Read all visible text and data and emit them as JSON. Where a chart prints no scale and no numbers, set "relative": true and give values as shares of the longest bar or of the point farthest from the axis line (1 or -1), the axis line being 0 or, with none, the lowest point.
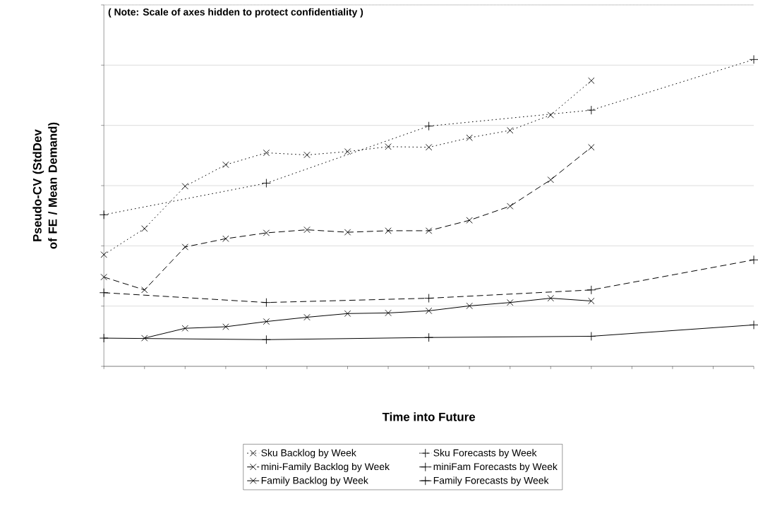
{
  "chart_data": {
    "type": "line",
    "relative": true,
    "xlabel": "Time into Future",
    "ylabel": "Pseudo-CV (StdDev of FE / Mean Demand)",
    "annotations": [
      "( Note: Scale of axes hidden to protect confidentiality )"
    ],
    "categories": [
      null,
      null,
      null,
      null,
      null,
      null,
      null,
      null,
      null,
      null,
      null,
      null,
      null,
      null,
      null,
      null,
      null
    ],
    "series": [
      {
        "name": "Sku Backlog by Week",
        "color": "#000000",
        "marker": "cross",
        "line_style": "dotted",
        "values": [
          0.364,
          0.449,
          0.587,
          0.657,
          0.696,
          0.689,
          0.7,
          0.716,
          0.714,
          0.745,
          0.769,
          0.819,
          0.931,
          null,
          null,
          null,
          null
        ]
      },
      {
        "name": "Sku Forecasts by Week",
        "color": "#000000",
        "marker": "plus",
        "line_style": "dotted",
        "values": [
          0.494,
          null,
          null,
          null,
          0.597,
          null,
          null,
          null,
          0.783,
          null,
          null,
          null,
          0.835,
          null,
          null,
          null,
          1
        ]
      },
      {
        "name": "mini-Family Backlog by Week",
        "color": "#000000",
        "marker": "cross",
        "line_style": "dashed",
        "values": [
          0.291,
          0.249,
          0.389,
          0.416,
          0.435,
          0.445,
          0.437,
          0.442,
          0.442,
          0.476,
          0.522,
          0.608,
          0.714,
          null,
          null,
          null,
          null
        ]
      },
      {
        "name": "miniFam Forecasts by Week",
        "color": "#000000",
        "marker": "plus",
        "line_style": "dashed",
        "values": [
          0.24,
          null,
          null,
          null,
          0.208,
          null,
          null,
          null,
          0.222,
          null,
          null,
          null,
          0.249,
          null,
          null,
          null,
          0.347
        ]
      },
      {
        "name": "Family Backlog by Week",
        "color": "#000000",
        "marker": "cross",
        "line_style": "solid",
        "values": [
          null,
          0.092,
          0.124,
          0.129,
          0.146,
          0.16,
          0.172,
          0.174,
          0.181,
          0.197,
          0.208,
          0.222,
          0.213,
          null,
          null,
          null,
          null
        ]
      },
      {
        "name": "Family Forecasts by Week",
        "color": "#000000",
        "marker": "plus",
        "line_style": "solid",
        "values": [
          0.092,
          null,
          null,
          null,
          0.087,
          null,
          null,
          null,
          0.094,
          null,
          null,
          null,
          0.098,
          null,
          null,
          null,
          0.135
        ]
      }
    ],
    "grid": "y",
    "legend": "bottom"
  }
}
